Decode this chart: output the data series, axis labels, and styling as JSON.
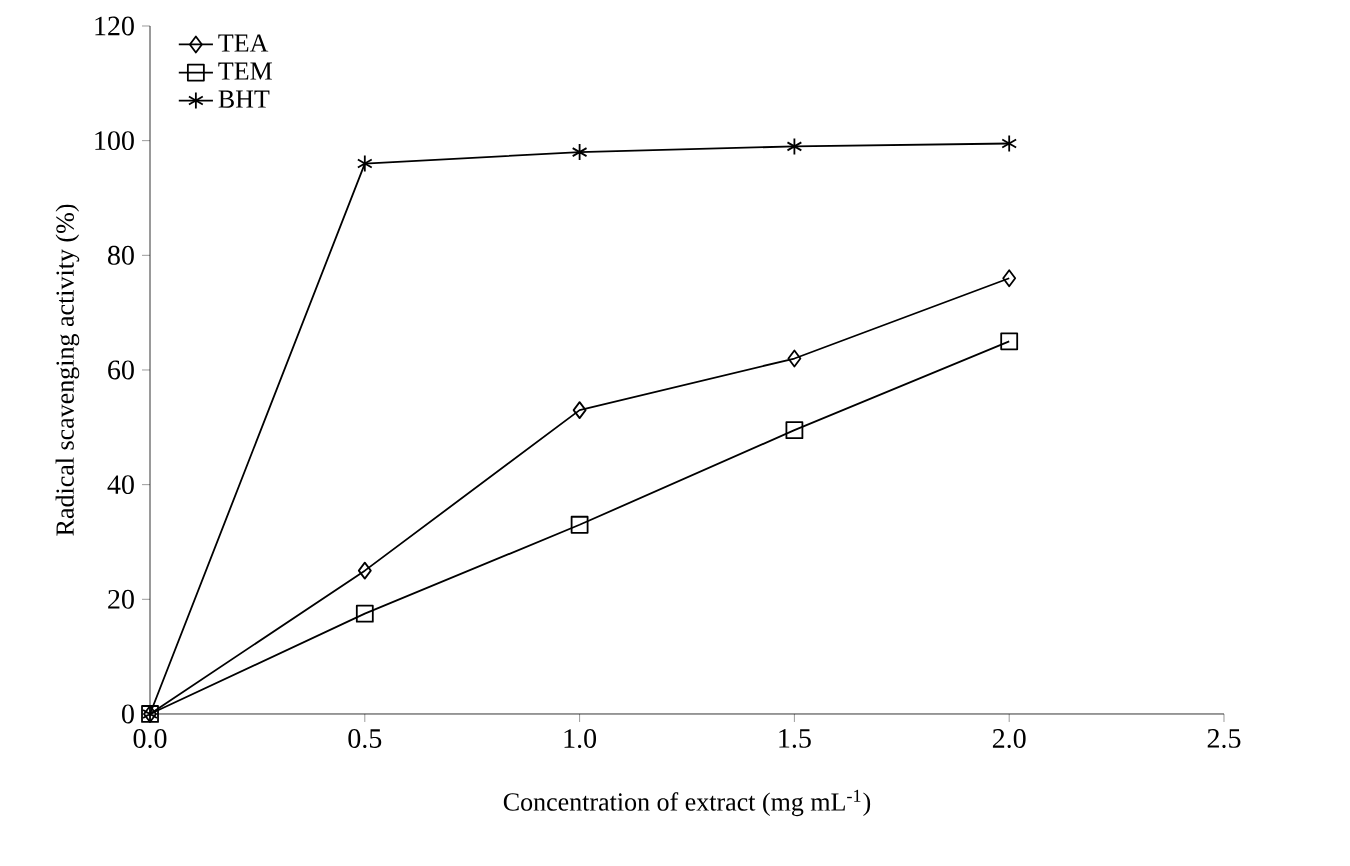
{
  "chart_data": {
    "type": "line",
    "xlabel": "Concentration of extract (mg mL$^{-1}$)",
    "ylabel": "Radical scavenging activity (%)",
    "x": [
      0,
      0.5,
      1.0,
      1.5,
      2.0
    ],
    "series": [
      {
        "name": "TEA",
        "color": "#000000",
        "marker": "diamond",
        "values": [
          0,
          25,
          53,
          62,
          76
        ]
      },
      {
        "name": "TEM",
        "color": "#000000",
        "marker": "square",
        "values": [
          0,
          17.5,
          33,
          49.5,
          65
        ]
      },
      {
        "name": "BHT",
        "color": "#000000",
        "marker": "cross",
        "values": [
          0,
          96,
          98,
          99,
          99.5
        ]
      }
    ],
    "xlim": [
      0,
      2.5
    ],
    "xticks": [
      {
        "value": 0,
        "label": "0.0"
      },
      {
        "value": 0.5,
        "label": "0.5"
      },
      {
        "value": 1.0,
        "label": "1.0"
      },
      {
        "value": 1.5,
        "label": "1.5"
      },
      {
        "value": 2.0,
        "label": "2.0"
      },
      {
        "value": 2.5,
        "label": "2.5"
      }
    ],
    "ylim": [
      0,
      120
    ],
    "yticks": [
      0,
      20,
      40,
      60,
      80,
      100,
      120
    ],
    "grid": false,
    "legend": "top left",
    "line_style": "solid"
  }
}
